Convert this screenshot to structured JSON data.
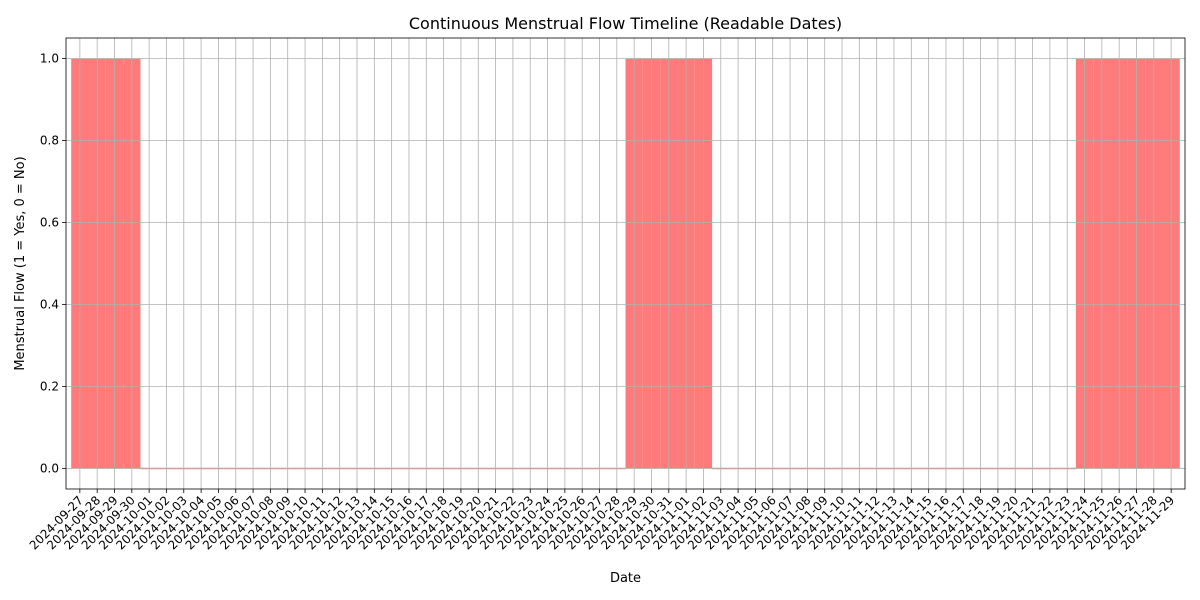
{
  "chart_data": {
    "type": "bar",
    "title": "Continuous Menstrual Flow Timeline (Readable Dates)",
    "xlabel": "Date",
    "ylabel": "Menstrual Flow (1 = Yes, 0 = No)",
    "ylim": [
      -0.05,
      1.05
    ],
    "yticks": [
      "0.0",
      "0.2",
      "0.4",
      "0.6",
      "0.8",
      "1.0"
    ],
    "grid": true,
    "bar_color": "#ff7b7b",
    "grid_color": "#b0b0b0",
    "categories": [
      "2024-09-27",
      "2024-09-28",
      "2024-09-29",
      "2024-09-30",
      "2024-10-01",
      "2024-10-02",
      "2024-10-03",
      "2024-10-04",
      "2024-10-05",
      "2024-10-06",
      "2024-10-07",
      "2024-10-08",
      "2024-10-09",
      "2024-10-10",
      "2024-10-11",
      "2024-10-12",
      "2024-10-13",
      "2024-10-14",
      "2024-10-15",
      "2024-10-16",
      "2024-10-17",
      "2024-10-18",
      "2024-10-19",
      "2024-10-20",
      "2024-10-21",
      "2024-10-22",
      "2024-10-23",
      "2024-10-24",
      "2024-10-25",
      "2024-10-26",
      "2024-10-27",
      "2024-10-28",
      "2024-10-29",
      "2024-10-30",
      "2024-10-31",
      "2024-11-01",
      "2024-11-02",
      "2024-11-03",
      "2024-11-04",
      "2024-11-05",
      "2024-11-06",
      "2024-11-07",
      "2024-11-08",
      "2024-11-09",
      "2024-11-10",
      "2024-11-11",
      "2024-11-12",
      "2024-11-13",
      "2024-11-14",
      "2024-11-15",
      "2024-11-16",
      "2024-11-17",
      "2024-11-18",
      "2024-11-19",
      "2024-11-20",
      "2024-11-21",
      "2024-11-22",
      "2024-11-23",
      "2024-11-24",
      "2024-11-25",
      "2024-11-26",
      "2024-11-27",
      "2024-11-28",
      "2024-11-29"
    ],
    "values": [
      1,
      1,
      1,
      1,
      0,
      0,
      0,
      0,
      0,
      0,
      0,
      0,
      0,
      0,
      0,
      0,
      0,
      0,
      0,
      0,
      0,
      0,
      0,
      0,
      0,
      0,
      0,
      0,
      0,
      0,
      0,
      0,
      1,
      1,
      1,
      1,
      1,
      0,
      0,
      0,
      0,
      0,
      0,
      0,
      0,
      0,
      0,
      0,
      0,
      0,
      0,
      0,
      0,
      0,
      0,
      0,
      0,
      0,
      1,
      1,
      1,
      1,
      1,
      1
    ]
  }
}
